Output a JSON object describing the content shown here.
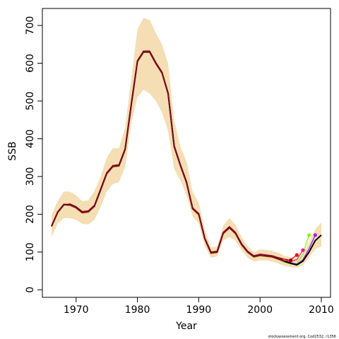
{
  "chart_data": {
    "type": "line",
    "xlabel": "Year",
    "ylabel": "SSB",
    "credit": "stockassessment.org, Cod2532, r1356",
    "xlim": [
      1964.5,
      2011.5
    ],
    "ylim": [
      -20,
      745
    ],
    "x_ticks": [
      1970,
      1980,
      1990,
      2000,
      2010
    ],
    "y_ticks": [
      0,
      100,
      200,
      300,
      400,
      500,
      600,
      700
    ],
    "colors": {
      "band": "#f5deb3",
      "final_line": "#000000",
      "retro_lines": [
        "#8b0000",
        "#c71585",
        "#ff1493",
        "#ff0000",
        "#ff00ff",
        "#7fff00",
        "#a020f0"
      ]
    },
    "years": [
      1966,
      1967,
      1968,
      1969,
      1970,
      1971,
      1972,
      1973,
      1974,
      1975,
      1976,
      1977,
      1978,
      1979,
      1980,
      1981,
      1982,
      1983,
      1984,
      1985,
      1986,
      1987,
      1988,
      1989,
      1990,
      1991,
      1992,
      1993,
      1994,
      1995,
      1996,
      1997,
      1998,
      1999,
      2000,
      2001,
      2002,
      2003,
      2004,
      2005,
      2006,
      2007,
      2008,
      2009,
      2010
    ],
    "ssb_estimate": [
      168,
      205,
      225,
      225,
      218,
      205,
      207,
      222,
      265,
      308,
      327,
      329,
      372,
      490,
      605,
      630,
      630,
      600,
      575,
      520,
      380,
      330,
      285,
      215,
      200,
      135,
      98,
      100,
      150,
      165,
      150,
      120,
      100,
      88,
      92,
      90,
      88,
      82,
      75,
      70,
      66,
      76,
      100,
      130,
      145
    ],
    "ssb_lower": [
      140,
      175,
      190,
      190,
      185,
      175,
      173,
      185,
      220,
      260,
      280,
      285,
      325,
      440,
      510,
      530,
      520,
      500,
      470,
      420,
      320,
      290,
      250,
      195,
      175,
      115,
      85,
      88,
      130,
      140,
      130,
      105,
      85,
      75,
      78,
      78,
      75,
      70,
      63,
      60,
      58,
      65,
      85,
      107,
      115
    ],
    "ssb_upper": [
      198,
      235,
      260,
      260,
      250,
      235,
      237,
      262,
      300,
      350,
      375,
      375,
      430,
      560,
      690,
      720,
      715,
      680,
      650,
      600,
      450,
      380,
      340,
      260,
      230,
      160,
      112,
      115,
      170,
      190,
      172,
      140,
      115,
      100,
      107,
      105,
      103,
      98,
      90,
      86,
      82,
      95,
      125,
      160,
      178
    ],
    "retro_endpoints": [
      {
        "year": 2005,
        "value": 78,
        "color": "#8b0000"
      },
      {
        "year": 2006,
        "value": 92,
        "color": "#ff0000"
      },
      {
        "year": 2007,
        "value": 105,
        "color": "#ff1493"
      },
      {
        "year": 2008,
        "value": 145,
        "color": "#7fff00"
      },
      {
        "year": 2009,
        "value": 145,
        "color": "#a020f0"
      }
    ]
  }
}
